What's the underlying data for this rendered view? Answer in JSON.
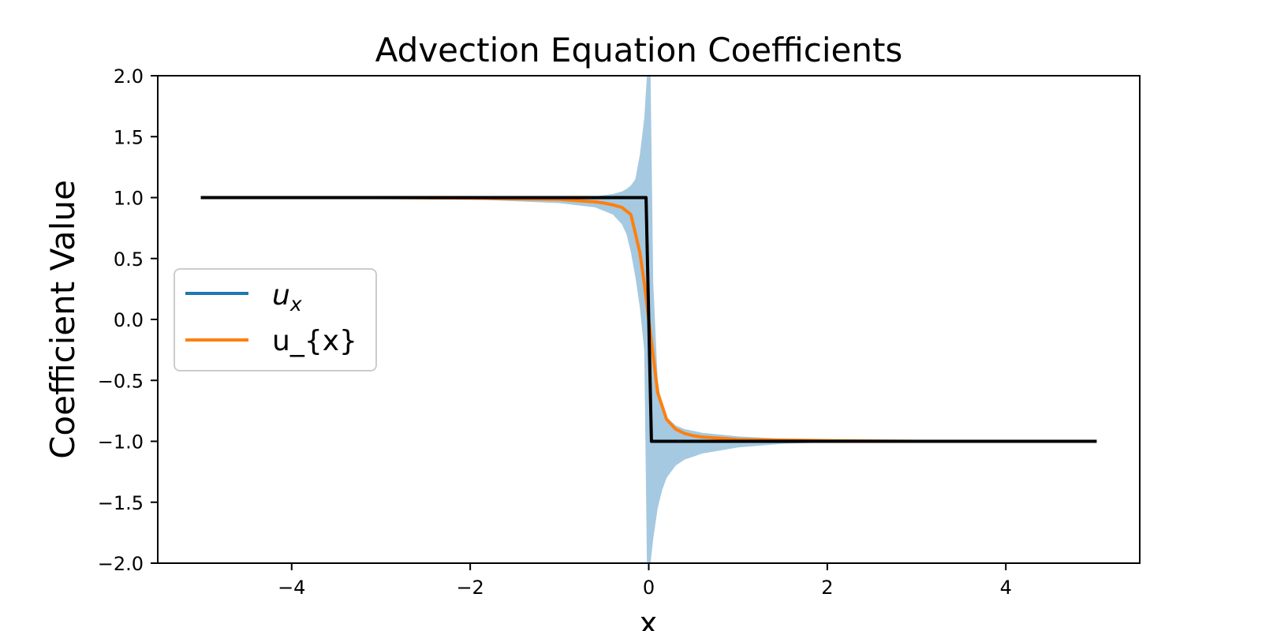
{
  "chart_data": {
    "type": "line",
    "title": "Advection Equation Coefficients",
    "xlabel": "x",
    "ylabel": "Coefficient Value",
    "xlim": [
      -5.5,
      5.5
    ],
    "ylim": [
      -2.0,
      2.0
    ],
    "x_ticks": [
      -4,
      -2,
      0,
      2,
      4
    ],
    "x_tick_labels": [
      "−4",
      "−2",
      "0",
      "2",
      "4"
    ],
    "y_ticks": [
      -2.0,
      -1.5,
      -1.0,
      -0.5,
      0.0,
      0.5,
      1.0,
      1.5,
      2.0
    ],
    "y_tick_labels": [
      "−2.0",
      "−1.5",
      "−1.0",
      "−0.5",
      "0.0",
      "0.5",
      "1.0",
      "1.5",
      "2.0"
    ],
    "grid": false,
    "legend": {
      "placement": "center-left",
      "entries": [
        {
          "label": "u",
          "subscript": "x",
          "italic": true,
          "color": "#1f77b4"
        },
        {
          "label": "u_{x}",
          "italic": false,
          "color": "#ff7f0e"
        }
      ]
    },
    "series": [
      {
        "name": "u_{x}",
        "color": "#ff7f0e",
        "x": [
          -5,
          -4,
          -3,
          -2,
          -1.5,
          -1,
          -0.8,
          -0.6,
          -0.5,
          -0.4,
          -0.3,
          -0.2,
          -0.1,
          -0.05,
          0,
          0.05,
          0.1,
          0.2,
          0.3,
          0.4,
          0.5,
          0.6,
          0.8,
          1,
          1.5,
          2,
          3,
          4,
          5
        ],
        "y": [
          1.0,
          1.0,
          1.0,
          0.995,
          0.99,
          0.985,
          0.975,
          0.965,
          0.955,
          0.94,
          0.92,
          0.86,
          0.55,
          0.3,
          0.0,
          -0.3,
          -0.6,
          -0.82,
          -0.9,
          -0.935,
          -0.955,
          -0.965,
          -0.975,
          -0.985,
          -0.99,
          -0.995,
          -1.0,
          -1.0,
          -1.0
        ]
      },
      {
        "name": "",
        "color": "#000000",
        "x": [
          -5,
          -0.03,
          0.03,
          5
        ],
        "y": [
          1.0,
          1.0,
          -1.0,
          -1.0
        ]
      }
    ],
    "band": {
      "color": "#1f77b4",
      "opacity": 0.4,
      "x": [
        -5,
        -3,
        -2,
        -1.5,
        -1,
        -0.6,
        -0.4,
        -0.3,
        -0.25,
        -0.2,
        -0.15,
        -0.1,
        -0.05,
        -0.02,
        0.02,
        0.05,
        0.1,
        0.15,
        0.2,
        0.3,
        0.4,
        0.6,
        1,
        1.5,
        2,
        3,
        5
      ],
      "upper": [
        1.0,
        1.0,
        1.0,
        1.0,
        1.0,
        1.01,
        1.03,
        1.05,
        1.07,
        1.1,
        1.15,
        1.35,
        1.65,
        2.0,
        2.0,
        0.3,
        -0.5,
        -0.72,
        -0.8,
        -0.87,
        -0.9,
        -0.93,
        -0.96,
        -0.98,
        -0.99,
        -1.0,
        -1.0
      ],
      "lower": [
        1.0,
        1.0,
        0.985,
        0.97,
        0.955,
        0.92,
        0.86,
        0.78,
        0.7,
        0.55,
        0.35,
        0.1,
        -0.25,
        -2.0,
        -2.0,
        -1.8,
        -1.55,
        -1.4,
        -1.3,
        -1.2,
        -1.15,
        -1.1,
        -1.05,
        -1.02,
        -1.01,
        -1.0,
        -1.0
      ]
    }
  }
}
